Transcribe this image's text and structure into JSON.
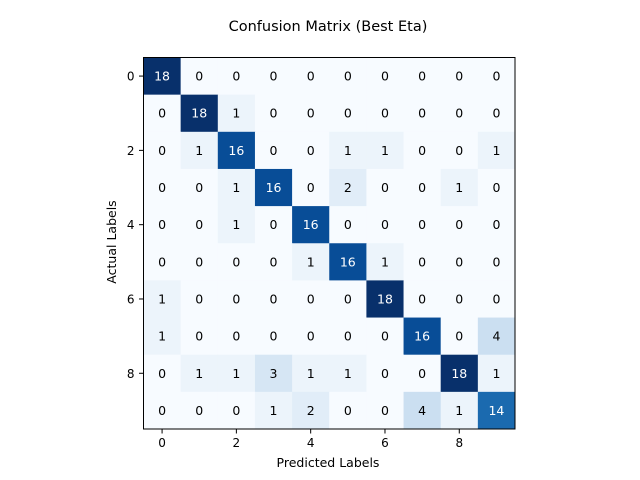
{
  "chart_data": {
    "type": "heatmap",
    "title": "Confusion Matrix (Best Eta)",
    "xlabel": "Predicted Labels",
    "ylabel": "Actual Labels",
    "x_ticks": [
      "0",
      "2",
      "4",
      "6",
      "8"
    ],
    "y_ticks": [
      "0",
      "2",
      "4",
      "6",
      "8"
    ],
    "colormap": "Blues",
    "vmin": 0,
    "vmax": 18,
    "matrix": [
      [
        18,
        0,
        0,
        0,
        0,
        0,
        0,
        0,
        0,
        0
      ],
      [
        0,
        18,
        1,
        0,
        0,
        0,
        0,
        0,
        0,
        0
      ],
      [
        0,
        1,
        16,
        0,
        0,
        1,
        1,
        0,
        0,
        1
      ],
      [
        0,
        0,
        1,
        16,
        0,
        2,
        0,
        0,
        1,
        0
      ],
      [
        0,
        0,
        1,
        0,
        16,
        0,
        0,
        0,
        0,
        0
      ],
      [
        0,
        0,
        0,
        0,
        1,
        16,
        1,
        0,
        0,
        0
      ],
      [
        1,
        0,
        0,
        0,
        0,
        0,
        18,
        0,
        0,
        0
      ],
      [
        1,
        0,
        0,
        0,
        0,
        0,
        0,
        16,
        0,
        4
      ],
      [
        0,
        1,
        1,
        3,
        1,
        1,
        0,
        0,
        18,
        1
      ],
      [
        0,
        0,
        0,
        1,
        2,
        0,
        0,
        4,
        1,
        14
      ]
    ]
  }
}
